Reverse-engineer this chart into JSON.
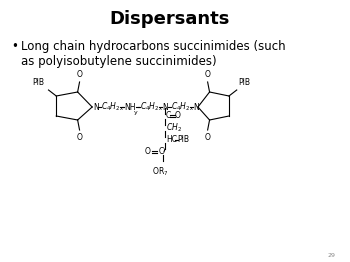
{
  "title": "Dispersants",
  "bullet_text": "Long chain hydrocarbons succinimides (such\nas polyisobutylene succinimides)",
  "background_color": "#ffffff",
  "title_fontsize": 13,
  "bullet_fontsize": 8.5,
  "chem_fontsize": 5.5,
  "slide_number": "29"
}
